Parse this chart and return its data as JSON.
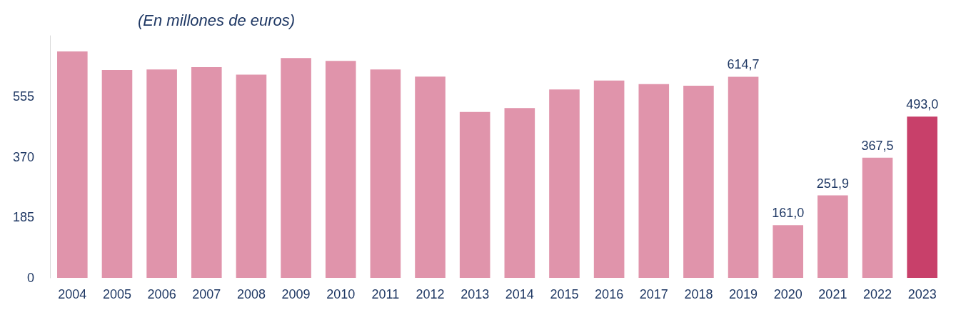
{
  "chart_data": {
    "type": "bar",
    "subtitle": "(En millones de euros)",
    "categories": [
      "2004",
      "2005",
      "2006",
      "2007",
      "2008",
      "2009",
      "2010",
      "2011",
      "2012",
      "2013",
      "2014",
      "2015",
      "2016",
      "2017",
      "2018",
      "2019",
      "2020",
      "2021",
      "2022",
      "2023"
    ],
    "values": [
      692,
      635,
      637,
      644,
      621,
      672,
      663,
      637,
      615,
      507,
      519,
      576,
      603,
      592,
      587,
      614.7,
      161.0,
      251.9,
      367.5,
      493.0
    ],
    "colors": [
      "#e094ab",
      "#e094ab",
      "#e094ab",
      "#e094ab",
      "#e094ab",
      "#e094ab",
      "#e094ab",
      "#e094ab",
      "#e094ab",
      "#e094ab",
      "#e094ab",
      "#e094ab",
      "#e094ab",
      "#e094ab",
      "#e094ab",
      "#e094ab",
      "#e094ab",
      "#e094ab",
      "#e094ab",
      "#c8406a"
    ],
    "value_labels": [
      null,
      null,
      null,
      null,
      null,
      null,
      null,
      null,
      null,
      null,
      null,
      null,
      null,
      null,
      null,
      "614,7",
      "161,0",
      "251,9",
      "367,5",
      "493,0"
    ],
    "ylim": [
      0,
      740
    ],
    "yticks": [
      0,
      185,
      370,
      555
    ],
    "grid": false
  }
}
